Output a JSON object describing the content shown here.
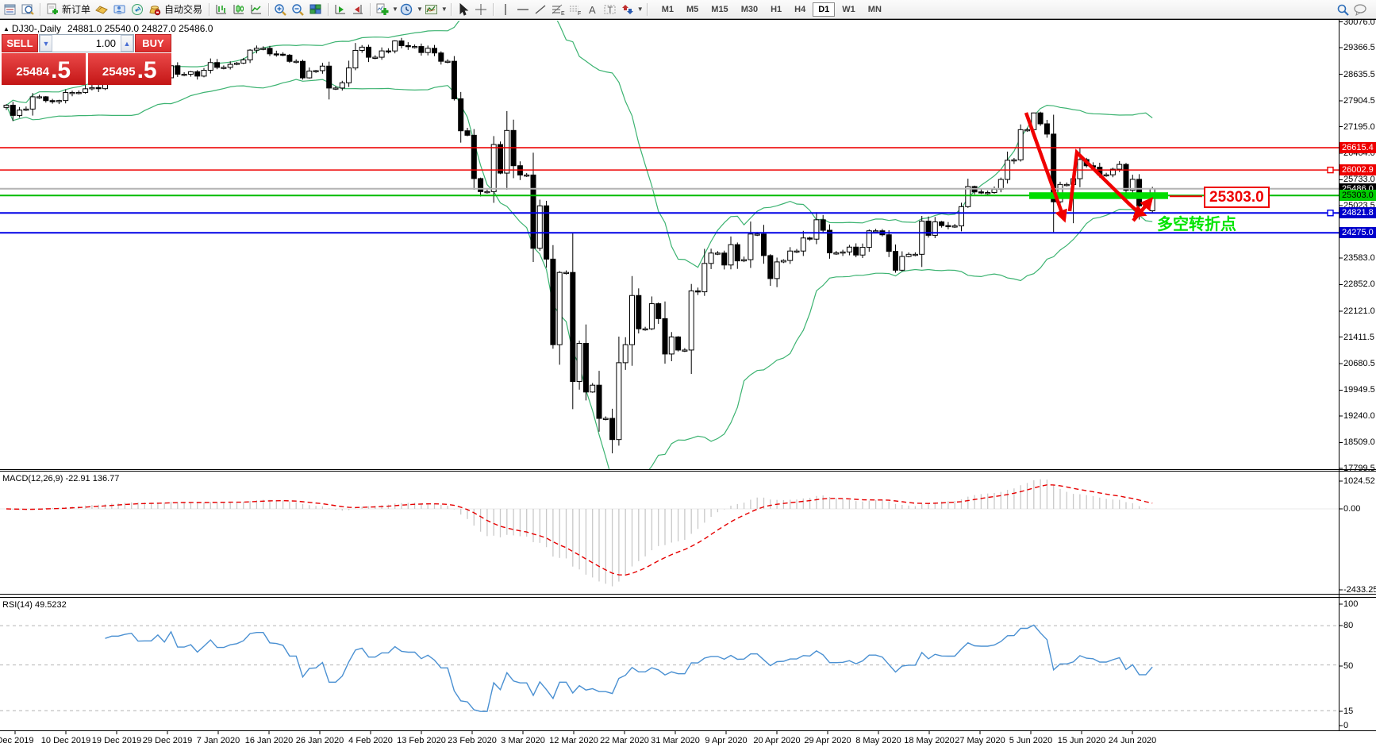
{
  "toolbar": {
    "new_order_label": "新订单",
    "autotrading_label": "自动交易",
    "timeframes": [
      "M1",
      "M5",
      "M15",
      "M30",
      "H1",
      "H4",
      "D1",
      "W1",
      "MN"
    ],
    "active_timeframe": "D1"
  },
  "chart_header": {
    "symbol_period": "DJ30-,Daily",
    "ohlc": "24881.0 25540.0 24827.0 25486.0"
  },
  "quote_panel": {
    "sell_label": "SELL",
    "buy_label": "BUY",
    "volume": "1.00",
    "sell_price_main": "25484",
    "sell_price_big": ".5",
    "buy_price_main": "25495",
    "buy_price_big": ".5"
  },
  "indicators_labels": {
    "macd_label": "MACD(12,26,9) -22.91 136.77",
    "rsi_label": "RSI(14) 49.5232"
  },
  "annotations": {
    "price_callout": "25303.0",
    "turning_point_text": "多空转折点"
  },
  "axis": {
    "price_ticks": [
      "30076.0",
      "29366.5",
      "28635.5",
      "27904.5",
      "27195.0",
      "26464.0",
      "25733.0",
      "25023.5",
      "23583.0",
      "22852.0",
      "22121.0",
      "21411.5",
      "20680.5",
      "19949.5",
      "19240.0",
      "18509.0",
      "17799.5"
    ],
    "macd_ticks": [
      "1024.52",
      "0.00",
      "-2433.25"
    ],
    "rsi_ticks": [
      "100",
      "80",
      "50",
      "15",
      "0"
    ],
    "date_labels": [
      "Dec 2019",
      "10 Dec 2019",
      "19 Dec 2019",
      "29 Dec 2019",
      "7 Jan 2020",
      "16 Jan 2020",
      "26 Jan 2020",
      "4 Feb 2020",
      "13 Feb 2020",
      "23 Feb 2020",
      "3 Mar 2020",
      "12 Mar 2020",
      "22 Mar 2020",
      "31 Mar 2020",
      "9 Apr 2020",
      "20 Apr 2020",
      "29 Apr 2020",
      "8 May 2020",
      "18 May 2020",
      "27 May 2020",
      "5 Jun 2020",
      "15 Jun 2020",
      "24 Jun 2020"
    ]
  },
  "chart_data": {
    "type": "candlestick",
    "symbol": "DJ30-",
    "period": "Daily",
    "title_ohlc": {
      "open": 24881.0,
      "high": 25540.0,
      "low": 24827.0,
      "close": 25486.0
    },
    "closes": [
      27783,
      27503,
      27650,
      27678,
      28015,
      28015,
      27910,
      27882,
      27912,
      28132,
      28135,
      28135,
      28235,
      28268,
      28239,
      28376,
      28455,
      28455,
      28515,
      28551,
      28455,
      28462,
      28462,
      28621,
      28538,
      28869,
      28635,
      28635,
      28704,
      28584,
      28745,
      28957,
      28824,
      28824,
      28907,
      28939,
      29030,
      29298,
      29348,
      29348,
      29196,
      29186,
      29160,
      28990,
      28990,
      28536,
      28723,
      28734,
      28859,
      28256,
      28256,
      28400,
      28808,
      29291,
      29380,
      29103,
      29103,
      29277,
      29276,
      29551,
      29423,
      29398,
      29398,
      29232,
      29348,
      29220,
      28992,
      28992,
      27961,
      27081,
      26958,
      25767,
      25409,
      25409,
      26703,
      25917,
      27090,
      26121,
      25865,
      25865,
      23851,
      25018,
      23553,
      21200,
      23186,
      23186,
      20188,
      21237,
      19899,
      20087,
      19174,
      19174,
      18592,
      20705,
      21200,
      22552,
      21637,
      21637,
      22327,
      21917,
      20944,
      21413,
      21053,
      21053,
      22680,
      22654,
      23434,
      23719,
      23719,
      23391,
      23950,
      23504,
      23538,
      24242,
      24242,
      23650,
      23018,
      23476,
      23515,
      23775,
      23775,
      24134,
      24102,
      24634,
      24346,
      23724,
      23724,
      23749,
      23883,
      23665,
      23876,
      24331,
      24331,
      24222,
      23765,
      23248,
      23625,
      23685,
      23685,
      24597,
      24207,
      24576,
      24474,
      24465,
      24465,
      24995,
      25548,
      25401,
      25383,
      25383,
      25475,
      25743,
      26270,
      26282,
      27111,
      27111,
      27572,
      27272,
      26990,
      25128,
      25605,
      25605,
      25763,
      26290,
      26120,
      26080,
      25871,
      25871,
      26025,
      26156,
      25446,
      25746,
      25016,
      25016,
      25486
    ],
    "special_bars": {
      "59": {
        "high": 29568
      },
      "92": {
        "low": 18213
      },
      "156": {
        "high": 27580
      },
      "162": {
        "low": 24540
      },
      "163": {
        "high": 26610
      },
      "174": {
        "open": 24881,
        "high": 25540,
        "low": 24827,
        "close": 25486
      }
    },
    "indicators": {
      "bollinger": {
        "period": 20,
        "deviation": 2,
        "color": "#3cb371"
      },
      "macd": {
        "fast": 12,
        "slow": 26,
        "signal": 9,
        "current_main": -22.91,
        "current_signal": 136.77,
        "hist_color": "#c9c9c9",
        "signal_color": "#e60000"
      },
      "rsi": {
        "period": 14,
        "current": 49.5232,
        "levels": [
          80,
          50,
          15
        ],
        "color": "#4a90d2"
      }
    },
    "price_levels": [
      {
        "price": 26615.4,
        "label": "26615.4",
        "color": "#ee0000",
        "label_bg": "#ee0000",
        "label_fg": "#ffffff",
        "handle": false
      },
      {
        "price": 26002.9,
        "label": "26002.9",
        "color": "#ee0000",
        "label_bg": "#ee0000",
        "label_fg": "#ffffff",
        "handle": true
      },
      {
        "price": 25486.0,
        "label": "25486.0",
        "color": "#b4b4b4",
        "label_bg": "#000000",
        "label_fg": "#ffffff",
        "handle": false
      },
      {
        "price": 25303.0,
        "label": "25303.0",
        "color": "#00bb00",
        "label_bg": "#00cc00",
        "label_fg": "#000000",
        "handle": false
      },
      {
        "price": 24821.8,
        "label": "24821.8",
        "color": "#0000e6",
        "label_bg": "#0000cc",
        "label_fg": "#ffffff",
        "handle": true
      },
      {
        "price": 24275.0,
        "label": "24275.0",
        "color": "#0000e6",
        "label_bg": "#0000cc",
        "label_fg": "#ffffff",
        "handle": false
      }
    ],
    "support_bar": {
      "price": 25303.0,
      "color": "#00dd00"
    },
    "candle_up_color": "#ffffff",
    "candle_down_color": "#000000",
    "zigzag_color": "#f00000"
  }
}
